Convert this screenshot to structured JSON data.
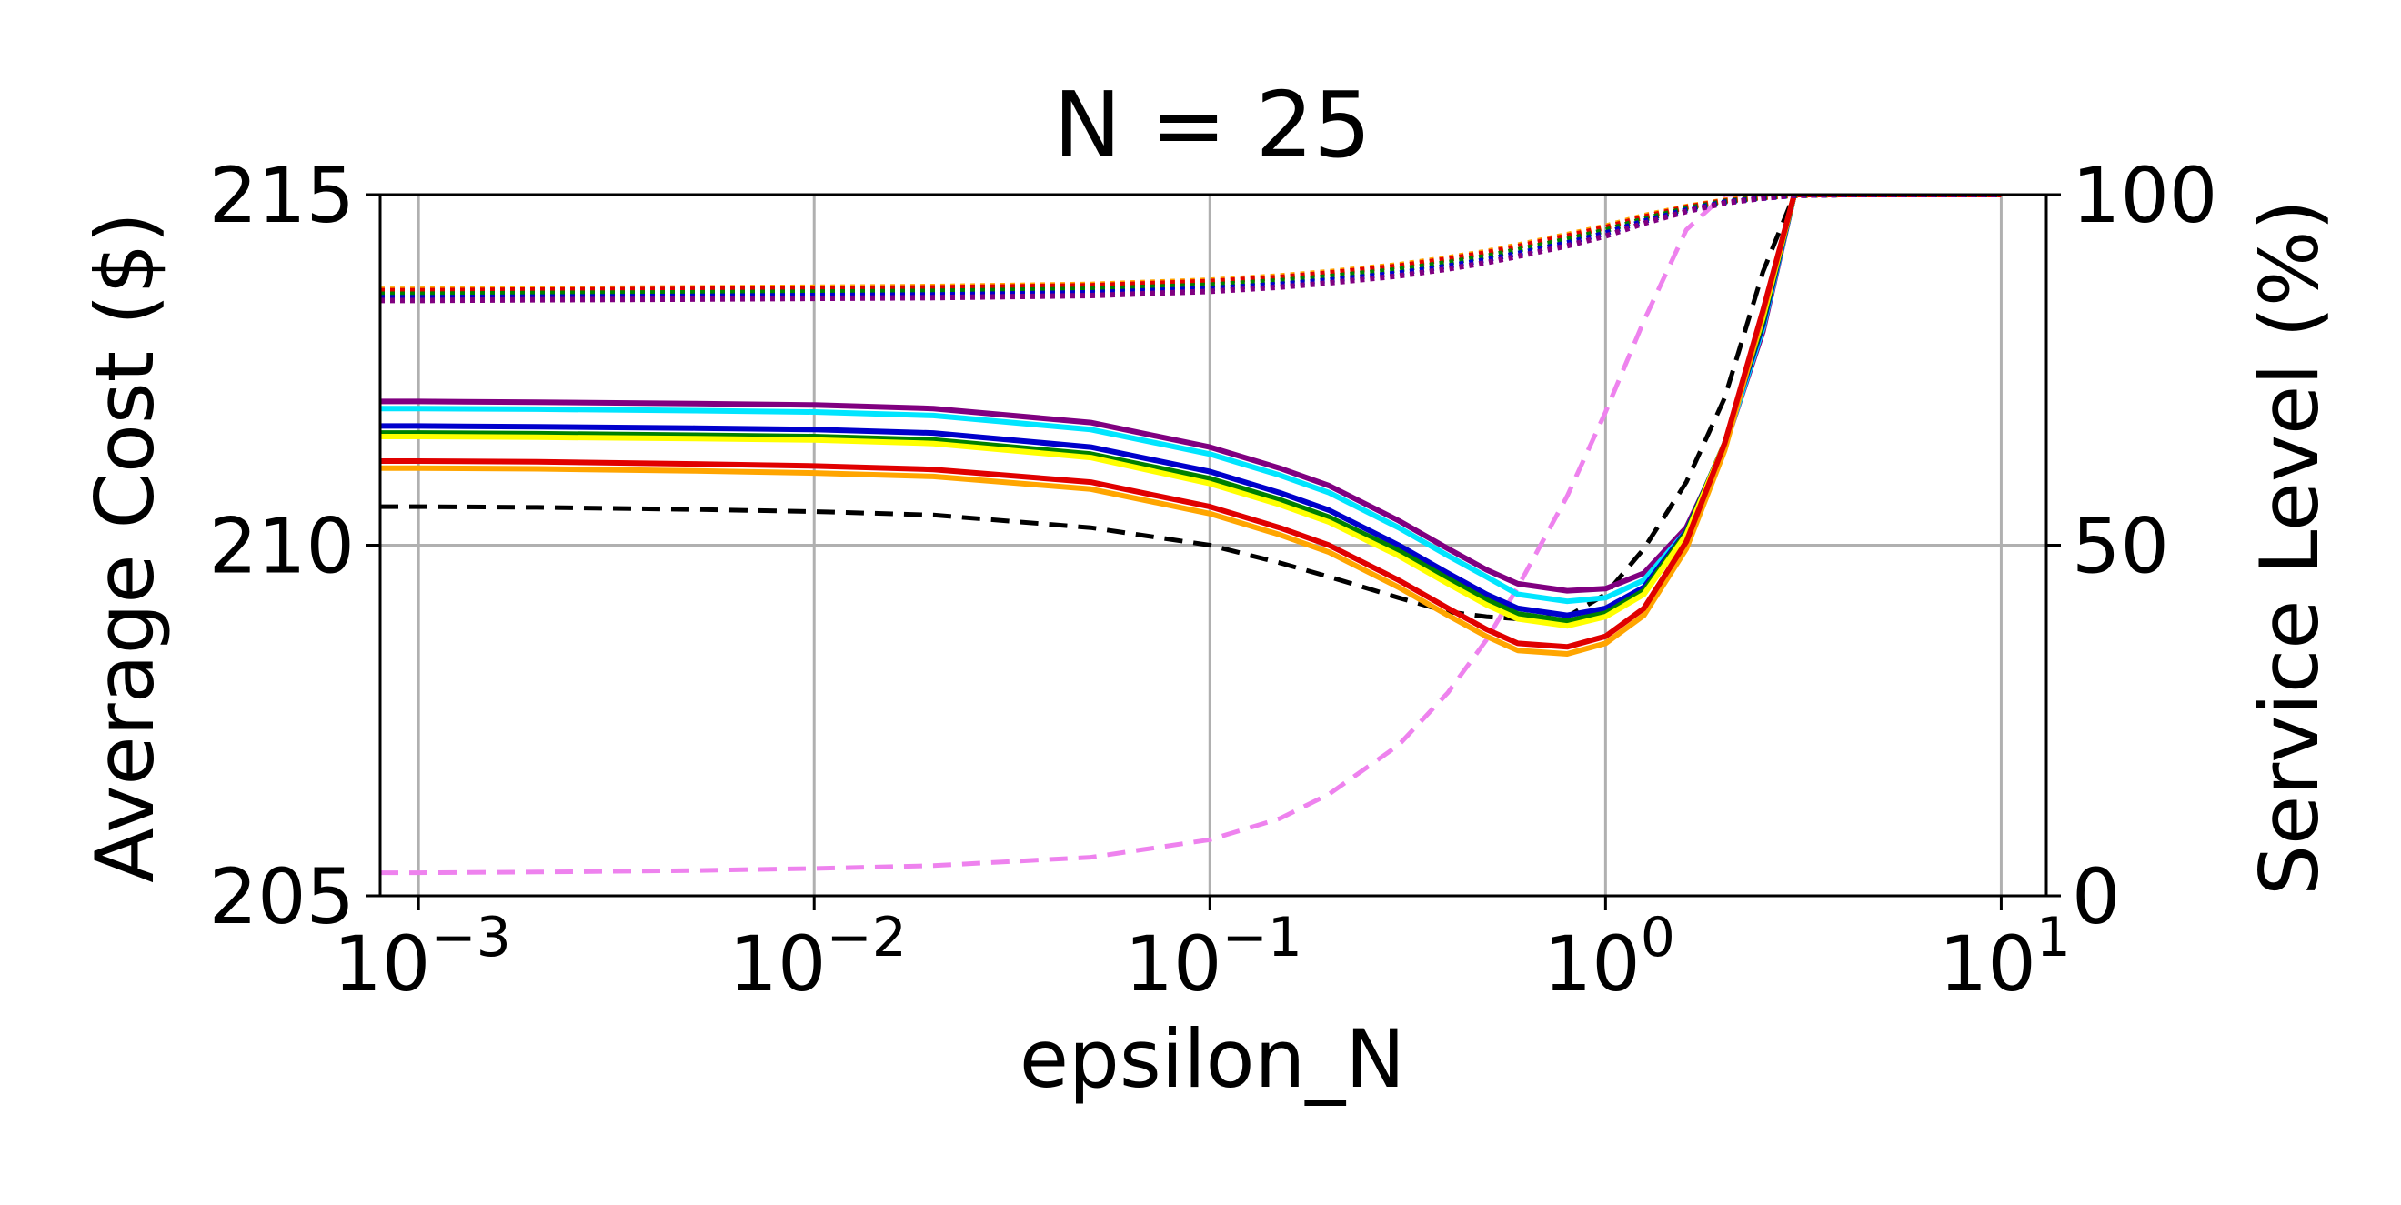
{
  "chart_data": {
    "type": "line",
    "title": "N = 25",
    "xlabel": "epsilon_N",
    "ylabel": "Average Cost ($)",
    "ylabel_right": "Service Level (%)",
    "x_scale": "log",
    "xlim": [
      0.0008,
      13
    ],
    "ylim": [
      205,
      215
    ],
    "ylim_right": [
      0,
      100
    ],
    "x_ticks": [
      {
        "value": 0.001,
        "base": "10",
        "exp": "−3"
      },
      {
        "value": 0.01,
        "base": "10",
        "exp": "−2"
      },
      {
        "value": 0.1,
        "base": "10",
        "exp": "−1"
      },
      {
        "value": 1,
        "base": "10",
        "exp": "0"
      },
      {
        "value": 10,
        "base": "10",
        "exp": "1"
      }
    ],
    "y_ticks": [
      "205",
      "210",
      "215"
    ],
    "y_ticks_right": [
      "0",
      "50",
      "100"
    ],
    "grid": true,
    "x": [
      0.0008,
      0.001,
      0.002,
      0.005,
      0.01,
      0.02,
      0.05,
      0.1,
      0.15,
      0.2,
      0.3,
      0.4,
      0.5,
      0.6,
      0.8,
      1.0,
      1.25,
      1.6,
      2.0,
      2.5,
      3.0,
      4.0,
      6.0,
      10.0
    ],
    "cost_series": [
      {
        "color": "#800080",
        "values": [
          212.05,
          212.05,
          212.04,
          212.02,
          212.0,
          211.95,
          211.75,
          211.4,
          211.1,
          210.85,
          210.35,
          209.95,
          209.65,
          209.45,
          209.35,
          209.38,
          209.6,
          210.25,
          211.4,
          213.05,
          215.0,
          215.0,
          215.0,
          215.0
        ]
      },
      {
        "color": "#00e5ff",
        "values": [
          211.95,
          211.95,
          211.94,
          211.92,
          211.9,
          211.85,
          211.65,
          211.3,
          211.0,
          210.75,
          210.25,
          209.85,
          209.55,
          209.3,
          209.2,
          209.25,
          209.5,
          210.2,
          211.4,
          213.1,
          215.0,
          215.0,
          215.0,
          215.0
        ]
      },
      {
        "color": "#0000cc",
        "values": [
          211.7,
          211.7,
          211.69,
          211.67,
          211.65,
          211.6,
          211.4,
          211.05,
          210.75,
          210.5,
          210.0,
          209.6,
          209.3,
          209.1,
          209.0,
          209.1,
          209.4,
          210.2,
          211.45,
          213.15,
          215.0,
          215.0,
          215.0,
          215.0
        ]
      },
      {
        "color": "#008000",
        "values": [
          211.6,
          211.6,
          211.59,
          211.57,
          211.55,
          211.5,
          211.3,
          210.95,
          210.65,
          210.4,
          209.92,
          209.52,
          209.22,
          209.02,
          208.92,
          209.03,
          209.35,
          210.18,
          211.45,
          213.2,
          215.0,
          215.0,
          215.0,
          215.0
        ]
      },
      {
        "color": "#ffff00",
        "values": [
          211.55,
          211.55,
          211.54,
          211.52,
          211.5,
          211.45,
          211.25,
          210.88,
          210.58,
          210.33,
          209.85,
          209.45,
          209.15,
          208.95,
          208.85,
          208.98,
          209.3,
          210.15,
          211.45,
          213.25,
          215.0,
          215.0,
          215.0,
          215.0
        ]
      },
      {
        "color": "#ffa500",
        "values": [
          211.1,
          211.1,
          211.09,
          211.06,
          211.03,
          210.98,
          210.8,
          210.45,
          210.15,
          209.9,
          209.4,
          209.0,
          208.7,
          208.5,
          208.45,
          208.6,
          209.0,
          209.95,
          211.35,
          213.3,
          215.0,
          215.0,
          215.0,
          215.0
        ]
      },
      {
        "color": "#e00000",
        "values": [
          211.2,
          211.2,
          211.19,
          211.16,
          211.13,
          211.08,
          210.9,
          210.55,
          210.25,
          210.0,
          209.5,
          209.1,
          208.8,
          208.6,
          208.55,
          208.7,
          209.1,
          210.05,
          211.45,
          213.35,
          215.0,
          215.0,
          215.0,
          215.0
        ]
      }
    ],
    "reference_cost": {
      "color": "#000000",
      "values": [
        210.55,
        210.55,
        210.54,
        210.51,
        210.48,
        210.43,
        210.25,
        210.0,
        209.75,
        209.55,
        209.25,
        209.05,
        208.98,
        208.95,
        208.98,
        209.3,
        209.95,
        210.9,
        212.1,
        213.9,
        215.0,
        215.0,
        215.0,
        215.0
      ]
    },
    "service_level_pink": {
      "color": "#ee82ee",
      "values": [
        3.3,
        3.3,
        3.4,
        3.6,
        3.9,
        4.3,
        5.5,
        8.0,
        11.0,
        14.5,
        21.5,
        29.0,
        36.5,
        44.0,
        57.0,
        69.0,
        82.0,
        95.0,
        100.0,
        100.0,
        100.0,
        100.0,
        100.0,
        100.0
      ]
    },
    "service_level_series": [
      {
        "color": "#ffa500",
        "values": [
          86.5,
          86.5,
          86.6,
          86.7,
          86.8,
          86.9,
          87.2,
          87.8,
          88.4,
          89.0,
          90.0,
          91.0,
          91.9,
          92.8,
          94.3,
          95.5,
          97.0,
          98.3,
          99.2,
          99.7,
          99.9,
          100.0,
          100.0,
          100.0
        ]
      },
      {
        "color": "#e00000",
        "values": [
          86.3,
          86.3,
          86.4,
          86.5,
          86.6,
          86.7,
          87.0,
          87.6,
          88.2,
          88.8,
          89.8,
          90.8,
          91.7,
          92.6,
          94.1,
          95.3,
          96.8,
          98.2,
          99.1,
          99.6,
          99.9,
          100.0,
          100.0,
          100.0
        ]
      },
      {
        "color": "#008000",
        "values": [
          85.8,
          85.8,
          85.9,
          86.0,
          86.1,
          86.2,
          86.5,
          87.1,
          87.7,
          88.3,
          89.3,
          90.3,
          91.2,
          92.1,
          93.6,
          94.9,
          96.5,
          98.0,
          99.0,
          99.6,
          99.9,
          100.0,
          100.0,
          100.0
        ]
      },
      {
        "color": "#0000cc",
        "values": [
          85.3,
          85.3,
          85.4,
          85.5,
          85.6,
          85.7,
          86.0,
          86.6,
          87.2,
          87.8,
          88.8,
          89.8,
          90.7,
          91.6,
          93.1,
          94.5,
          96.2,
          97.8,
          98.9,
          99.5,
          99.9,
          100.0,
          100.0,
          100.0
        ]
      },
      {
        "color": "#800080",
        "values": [
          84.9,
          84.9,
          85.0,
          85.1,
          85.2,
          85.3,
          85.6,
          86.2,
          86.8,
          87.4,
          88.4,
          89.4,
          90.3,
          91.2,
          92.7,
          94.1,
          95.9,
          97.6,
          98.8,
          99.5,
          99.9,
          100.0,
          100.0,
          100.0
        ]
      }
    ]
  }
}
